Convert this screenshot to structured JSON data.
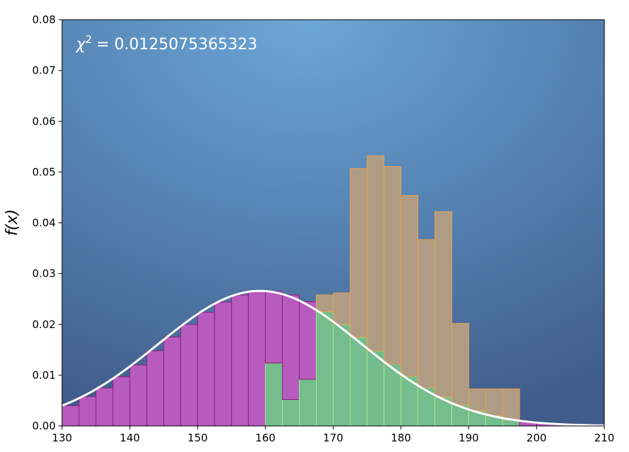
{
  "chart_data": {
    "type": "bar",
    "ylabel": "f(x)",
    "annotation_prefix": "χ²",
    "annotation_symbol": "χ",
    "annotation_sup": "2",
    "annotation_value": "= 0.0125075365323",
    "xlim": [
      130,
      210
    ],
    "ylim": [
      0,
      0.08
    ],
    "xticks": [
      "130",
      "140",
      "150",
      "160",
      "170",
      "180",
      "190",
      "200",
      "210"
    ],
    "yticks": [
      "0.00",
      "0.01",
      "0.02",
      "0.03",
      "0.04",
      "0.05",
      "0.06",
      "0.07",
      "0.08"
    ],
    "bin_width": 2.5,
    "grid": false,
    "background_gradient": [
      "#6ba7d8",
      "#3f5c8a"
    ],
    "series": [
      {
        "fill": "#b85bbf",
        "edge": "#8a1f78",
        "bins": [
          {
            "x": 130,
            "y": 0.004
          },
          {
            "x": 132.5,
            "y": 0.0058
          },
          {
            "x": 135,
            "y": 0.0075
          },
          {
            "x": 137.5,
            "y": 0.0097
          },
          {
            "x": 140,
            "y": 0.012
          },
          {
            "x": 142.5,
            "y": 0.0148
          },
          {
            "x": 145,
            "y": 0.0175
          },
          {
            "x": 147.5,
            "y": 0.02
          },
          {
            "x": 150,
            "y": 0.0224
          },
          {
            "x": 152.5,
            "y": 0.0244
          },
          {
            "x": 155,
            "y": 0.0258
          },
          {
            "x": 157.5,
            "y": 0.0265
          },
          {
            "x": 160,
            "y": 0.0265
          },
          {
            "x": 162.5,
            "y": 0.0258
          },
          {
            "x": 165,
            "y": 0.0245
          },
          {
            "x": 167.5,
            "y": 0.0225
          },
          {
            "x": 170,
            "y": 0.02
          },
          {
            "x": 172.5,
            "y": 0.0175
          },
          {
            "x": 175,
            "y": 0.0148
          },
          {
            "x": 177.5,
            "y": 0.0122
          },
          {
            "x": 180,
            "y": 0.0098
          },
          {
            "x": 182.5,
            "y": 0.0076
          },
          {
            "x": 185,
            "y": 0.0057
          },
          {
            "x": 187.5,
            "y": 0.0042
          },
          {
            "x": 190,
            "y": 0.003
          },
          {
            "x": 192.5,
            "y": 0.002
          },
          {
            "x": 195,
            "y": 0.0013
          },
          {
            "x": 197.5,
            "y": 0.0008
          },
          {
            "x": 200,
            "y": 0.0005
          },
          {
            "x": 202.5,
            "y": 0.0003
          },
          {
            "x": 205,
            "y": 0.0002
          },
          {
            "x": 207.5,
            "y": 0.0001
          }
        ]
      },
      {
        "fill": "#b09c84",
        "edge": "#e8a050",
        "bins": [
          {
            "x": 160,
            "y": 0.0124
          },
          {
            "x": 162.5,
            "y": 0.0052
          },
          {
            "x": 165,
            "y": 0.0092
          },
          {
            "x": 167.5,
            "y": 0.0258
          },
          {
            "x": 170,
            "y": 0.0262
          },
          {
            "x": 172.5,
            "y": 0.0507
          },
          {
            "x": 175,
            "y": 0.0532
          },
          {
            "x": 177.5,
            "y": 0.0511
          },
          {
            "x": 180,
            "y": 0.0454
          },
          {
            "x": 182.5,
            "y": 0.0367
          },
          {
            "x": 185,
            "y": 0.0422
          },
          {
            "x": 187.5,
            "y": 0.0202
          },
          {
            "x": 190,
            "y": 0.0073
          },
          {
            "x": 192.5,
            "y": 0.0073
          },
          {
            "x": 195,
            "y": 0.0073
          }
        ]
      }
    ],
    "overlap_fill": "#74bd8c",
    "overlap_edge": "#a8e880",
    "curve": {
      "mean": 159.2,
      "sd": 15.0,
      "color": "#ffffff"
    }
  }
}
